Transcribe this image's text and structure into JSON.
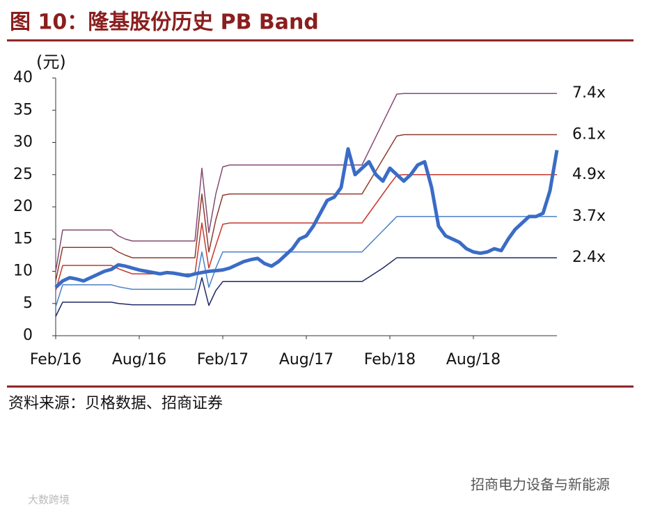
{
  "header": {
    "title": "图 10：隆基股份历史 PB Band"
  },
  "chart_data": {
    "type": "line",
    "y_label": "(元)",
    "categories": [
      "Feb/16",
      null,
      null,
      null,
      null,
      null,
      null,
      null,
      null,
      null,
      null,
      null,
      "Aug/16",
      null,
      null,
      null,
      null,
      null,
      null,
      null,
      null,
      null,
      null,
      null,
      "Feb/17",
      null,
      null,
      null,
      null,
      null,
      null,
      null,
      null,
      null,
      null,
      null,
      "Aug/17",
      null,
      null,
      null,
      null,
      null,
      null,
      null,
      null,
      null,
      null,
      null,
      "Feb/18",
      null,
      null,
      null,
      null,
      null,
      null,
      null,
      null,
      null,
      null,
      null,
      "Aug/18",
      null,
      null,
      null,
      null,
      null,
      null,
      null,
      null,
      null,
      null,
      null,
      null
    ],
    "ylim": [
      0,
      40
    ],
    "yticks": [
      0,
      5,
      10,
      15,
      20,
      25,
      30,
      35,
      40
    ],
    "series": [
      {
        "name": "7.4x",
        "color": "#844a72",
        "width": 1.5,
        "values": [
          10,
          16.4,
          16.4,
          16.4,
          16.4,
          16.4,
          16.4,
          16.4,
          16.4,
          15.5,
          15,
          14.7,
          14.7,
          14.7,
          14.7,
          14.7,
          14.7,
          14.7,
          14.7,
          14.7,
          14.7,
          26,
          16,
          22,
          26.2,
          26.5,
          26.5,
          26.5,
          26.5,
          26.5,
          26.5,
          26.5,
          26.5,
          26.5,
          26.5,
          26.5,
          26.5,
          26.5,
          26.5,
          26.5,
          26.5,
          26.5,
          26.5,
          26.5,
          26.5,
          28.7,
          30.9,
          33.1,
          35.3,
          37.5,
          37.6,
          37.6,
          37.6,
          37.6,
          37.6,
          37.6,
          37.6,
          37.6,
          37.6,
          37.6,
          37.6,
          37.6,
          37.6,
          37.6,
          37.6,
          37.6,
          37.6,
          37.6,
          37.6,
          37.6,
          37.6,
          37.6,
          37.6
        ]
      },
      {
        "name": "6.1x",
        "color": "#8c3b2e",
        "width": 1.5,
        "values": [
          8.5,
          13.7,
          13.7,
          13.7,
          13.7,
          13.7,
          13.7,
          13.7,
          13.7,
          13,
          12.5,
          12.1,
          12.1,
          12.1,
          12.1,
          12.1,
          12.1,
          12.1,
          12.1,
          12.1,
          12.1,
          22,
          13,
          18,
          21.8,
          22,
          22,
          22,
          22,
          22,
          22,
          22,
          22,
          22,
          22,
          22,
          22,
          22,
          22,
          22,
          22,
          22,
          22,
          22,
          22,
          23.8,
          25.6,
          27.4,
          29.2,
          31,
          31.2,
          31.2,
          31.2,
          31.2,
          31.2,
          31.2,
          31.2,
          31.2,
          31.2,
          31.2,
          31.2,
          31.2,
          31.2,
          31.2,
          31.2,
          31.2,
          31.2,
          31.2,
          31.2,
          31.2,
          31.2,
          31.2,
          31.2
        ]
      },
      {
        "name": "4.9x",
        "color": "#c8372d",
        "width": 1.5,
        "values": [
          7,
          10.9,
          10.9,
          10.9,
          10.9,
          10.9,
          10.9,
          10.9,
          10.9,
          10.4,
          10,
          9.6,
          9.6,
          9.6,
          9.6,
          9.6,
          9.6,
          9.6,
          9.6,
          9.6,
          9.6,
          17.5,
          10.5,
          14,
          17.3,
          17.5,
          17.5,
          17.5,
          17.5,
          17.5,
          17.5,
          17.5,
          17.5,
          17.5,
          17.5,
          17.5,
          17.5,
          17.5,
          17.5,
          17.5,
          17.5,
          17.5,
          17.5,
          17.5,
          17.5,
          19,
          20.5,
          22,
          23.5,
          24.9,
          25,
          25,
          25,
          25,
          25,
          25,
          25,
          25,
          25,
          25,
          25,
          25,
          25,
          25,
          25,
          25,
          25,
          25,
          25,
          25,
          25,
          25,
          25
        ]
      },
      {
        "name": "3.7x",
        "color": "#4a7fc8",
        "width": 1.5,
        "values": [
          4.5,
          7.9,
          7.9,
          7.9,
          7.9,
          7.9,
          7.9,
          7.9,
          7.9,
          7.6,
          7.4,
          7.2,
          7.2,
          7.2,
          7.2,
          7.2,
          7.2,
          7.2,
          7.2,
          7.2,
          7.2,
          13,
          7.5,
          10.5,
          13,
          13,
          13,
          13,
          13,
          13,
          13,
          13,
          13,
          13,
          13,
          13,
          13,
          13,
          13,
          13,
          13,
          13,
          13,
          13,
          13,
          14.1,
          15.2,
          16.3,
          17.4,
          18.5,
          18.5,
          18.5,
          18.5,
          18.5,
          18.5,
          18.5,
          18.5,
          18.5,
          18.5,
          18.5,
          18.5,
          18.5,
          18.5,
          18.5,
          18.5,
          18.5,
          18.5,
          18.5,
          18.5,
          18.5,
          18.5,
          18.5,
          18.5
        ]
      },
      {
        "name": "2.4x",
        "color": "#1d2766",
        "width": 1.5,
        "values": [
          3,
          5.2,
          5.2,
          5.2,
          5.2,
          5.2,
          5.2,
          5.2,
          5.2,
          5,
          4.9,
          4.8,
          4.8,
          4.8,
          4.8,
          4.8,
          4.8,
          4.8,
          4.8,
          4.8,
          4.8,
          9,
          4.7,
          7,
          8.4,
          8.4,
          8.4,
          8.4,
          8.4,
          8.4,
          8.4,
          8.4,
          8.4,
          8.4,
          8.4,
          8.4,
          8.4,
          8.4,
          8.4,
          8.4,
          8.4,
          8.4,
          8.4,
          8.4,
          8.4,
          9.1,
          9.8,
          10.5,
          11.3,
          12.1,
          12.1,
          12.1,
          12.1,
          12.1,
          12.1,
          12.1,
          12.1,
          12.1,
          12.1,
          12.1,
          12.1,
          12.1,
          12.1,
          12.1,
          12.1,
          12.1,
          12.1,
          12.1,
          12.1,
          12.1,
          12.1,
          12.1,
          12.1
        ]
      },
      {
        "color": "#3a6cc6",
        "width": 5,
        "values": [
          7.5,
          8.5,
          9,
          8.8,
          8.5,
          9,
          9.5,
          10,
          10.3,
          11,
          10.8,
          10.5,
          10.2,
          10,
          9.8,
          9.6,
          9.8,
          9.7,
          9.5,
          9.3,
          9.6,
          9.8,
          10,
          10.1,
          10.2,
          10.5,
          11,
          11.5,
          11.8,
          12,
          11.2,
          10.8,
          11.5,
          12.5,
          13.5,
          15,
          15.5,
          17,
          19,
          21,
          21.5,
          23,
          29,
          25,
          26,
          27,
          25,
          24,
          26,
          25,
          24,
          25,
          26.5,
          27,
          23,
          17,
          15.5,
          15,
          14.5,
          13.5,
          13,
          12.8,
          13,
          13.5,
          13.2,
          15,
          16.5,
          17.5,
          18.5,
          18.5,
          19,
          22.5,
          28.8
        ]
      }
    ]
  },
  "source": "资料来源：贝格数据、招商证券",
  "watermark": {
    "brand": "招商电力设备与新能源",
    "corner": "大数跨境"
  }
}
